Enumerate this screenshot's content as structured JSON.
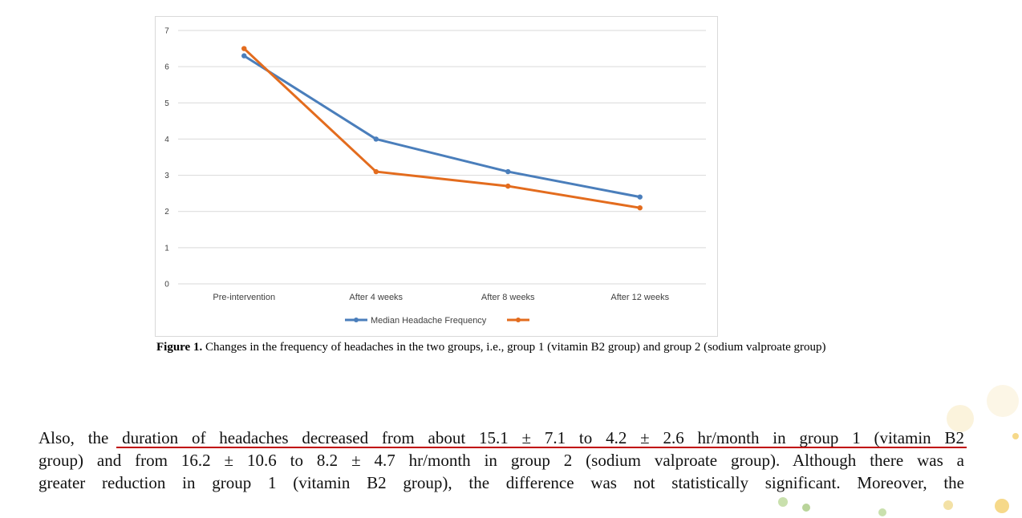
{
  "chart_data": {
    "type": "line",
    "categories": [
      "Pre-intervention",
      "After 4 weeks",
      "After 8 weeks",
      "After 12 weeks"
    ],
    "series": [
      {
        "name": "Median Headache Frequency",
        "color": "#4a7ebb",
        "values": [
          6.3,
          4.0,
          3.1,
          2.4
        ]
      },
      {
        "name": "",
        "color": "#e36c1e",
        "values": [
          6.5,
          3.1,
          2.7,
          2.1
        ]
      }
    ],
    "y_ticks": [
      0,
      1,
      2,
      3,
      4,
      5,
      6,
      7
    ],
    "ylim": [
      0,
      7
    ],
    "grid": true,
    "legend": "bottom",
    "title": "",
    "xlabel": "",
    "ylabel": ""
  },
  "caption": {
    "label": "Figure 1.",
    "text": "Changes in the frequency of headaches in the two groups, i.e., group 1 (vitamin B2 group) and group 2 (sodium valproate group)"
  },
  "body": {
    "line1": "Also, the duration of headaches decreased from about 15.1 ± 7.1 to 4.2 ± 2.6 hr/month in group 1 (vitamin B2",
    "line2": "group) and from 16.2 ± 10.6 to 8.2 ± 4.7 hr/month in group 2 (sodium valproate group). Although there was a",
    "line3": "greater reduction in group 1 (vitamin B2 group), the difference was not statistically significant. Moreover, the"
  },
  "colors": {
    "underline": "#c00000",
    "grid": "#d9d9d9"
  }
}
